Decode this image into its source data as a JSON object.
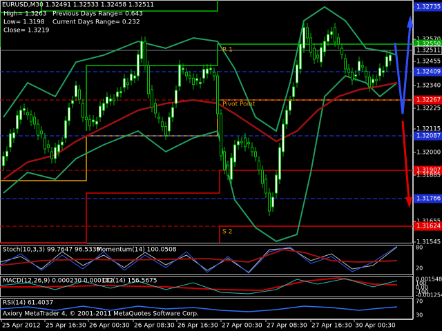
{
  "header": {
    "symbol_line": "EURUSD,M30 1.32491 1.32533 1.32458 1.32511",
    "high": "High= 1.3263",
    "prev_range": "Previous Days Range= 0.643",
    "low": "Low= 1.3198",
    "curr_range": "Current Days Range= 0.232",
    "close": "Close= 1.3219"
  },
  "levels": {
    "r1": "R 1",
    "pivot": "Pivot Point",
    "s2": "S 2"
  },
  "price_axis": [
    "1.32735",
    "1.32570",
    "1.32550",
    "1.32511",
    "1.32455",
    "1.32409",
    "1.32340",
    "1.32267",
    "1.32225",
    "1.32115",
    "1.32087",
    "1.32000",
    "1.31907",
    "1.31885",
    "1.31766",
    "1.31655",
    "1.31624",
    "1.31545"
  ],
  "indicators": {
    "stoch": "Stoch(10,3,3) 99.7647 96.5339",
    "momentum": "Momentum(14) 100.0508",
    "macd": "MACD(12,26,9) 0.000230 0.000102",
    "cci": "CCI(14) 156.5675",
    "rsi": "RSI(14) 61.4037"
  },
  "indicator_axes": {
    "stoch": [
      "80",
      "20"
    ],
    "macd": [
      "0.001548",
      "100",
      "0.00",
      "-100",
      "-0.001254"
    ],
    "rsi": [
      "70",
      "30"
    ]
  },
  "time_axis": [
    "25 Apr 2012",
    "25 Apr 16:30",
    "26 Apr 00:30",
    "26 Apr 08:30",
    "26 Apr 16:30",
    "27 Apr 00:30",
    "27 Apr 08:30",
    "27 Apr 16:30",
    "30 Apr 00:30"
  ],
  "footer": "Axiory MetaTrader 4, © 2001-2011 MetaQuotes Software Corp."
}
